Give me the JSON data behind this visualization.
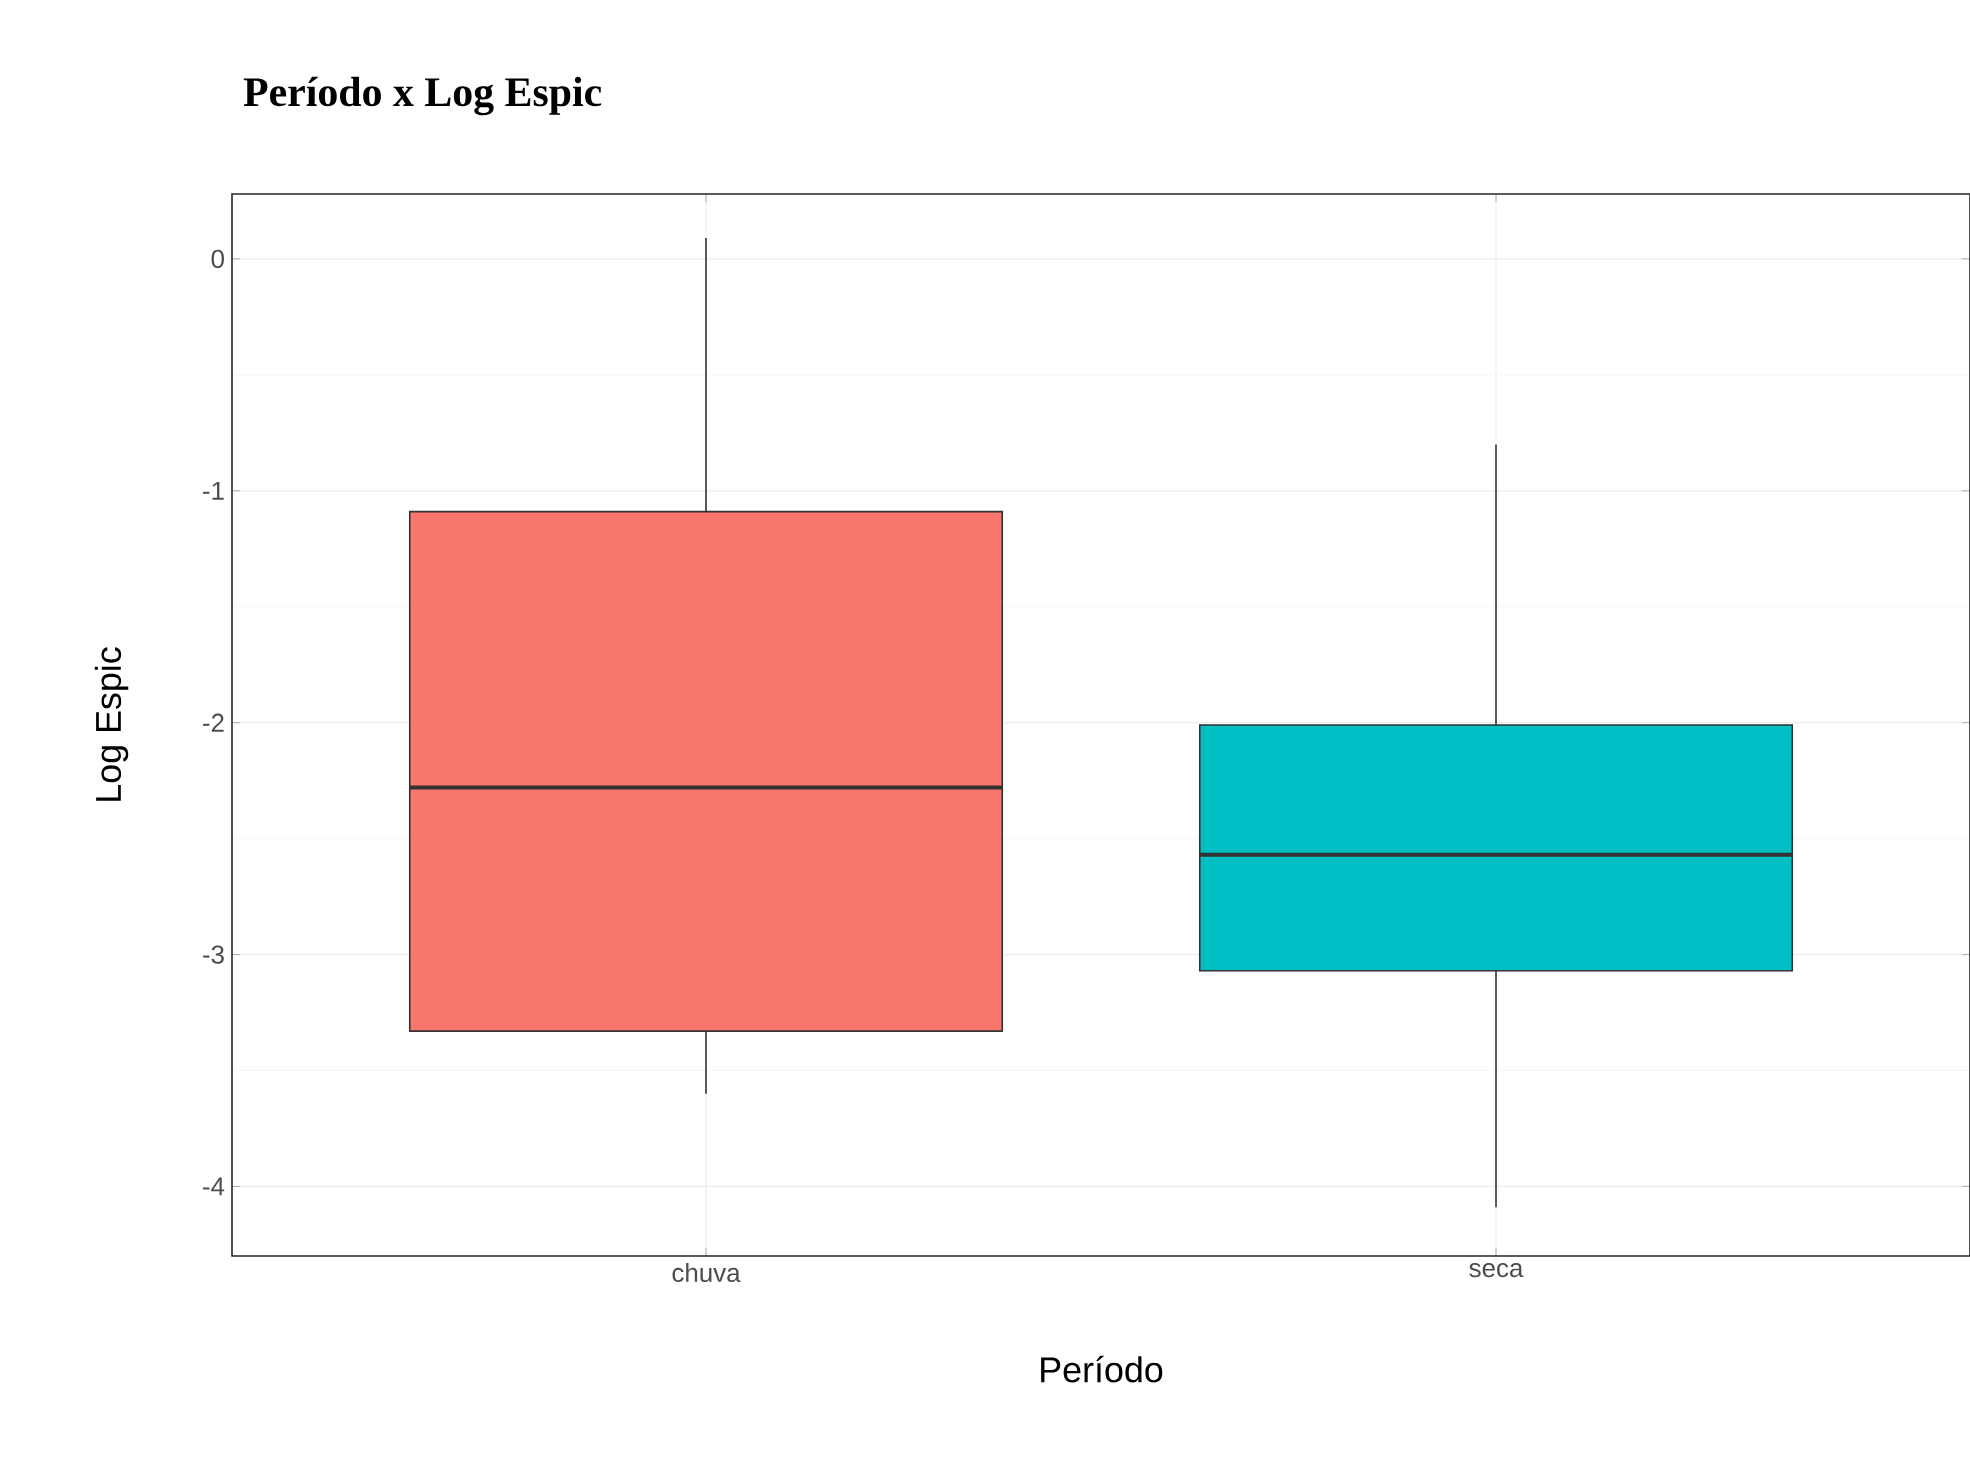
{
  "chart_data": {
    "type": "box",
    "title": "Período x Log Espic",
    "xlabel": "Período",
    "ylabel": "Log Espic",
    "categories": [
      "chuva",
      "seca"
    ],
    "series": [
      {
        "color": "#f8766d",
        "boxes": [
          {
            "low": -3.6,
            "q1": -3.33,
            "median": -2.28,
            "q3": -1.09,
            "high": 0.09
          },
          null
        ]
      },
      {
        "color": "#00bfc4",
        "boxes": [
          null,
          {
            "low": -4.09,
            "q1": -3.07,
            "median": -2.57,
            "q3": -2.01,
            "high": -0.8
          }
        ]
      }
    ],
    "ylim": [
      -4.3,
      0.28
    ],
    "yticks": [
      -4,
      -3,
      -2,
      -1,
      0
    ],
    "grid": true
  }
}
